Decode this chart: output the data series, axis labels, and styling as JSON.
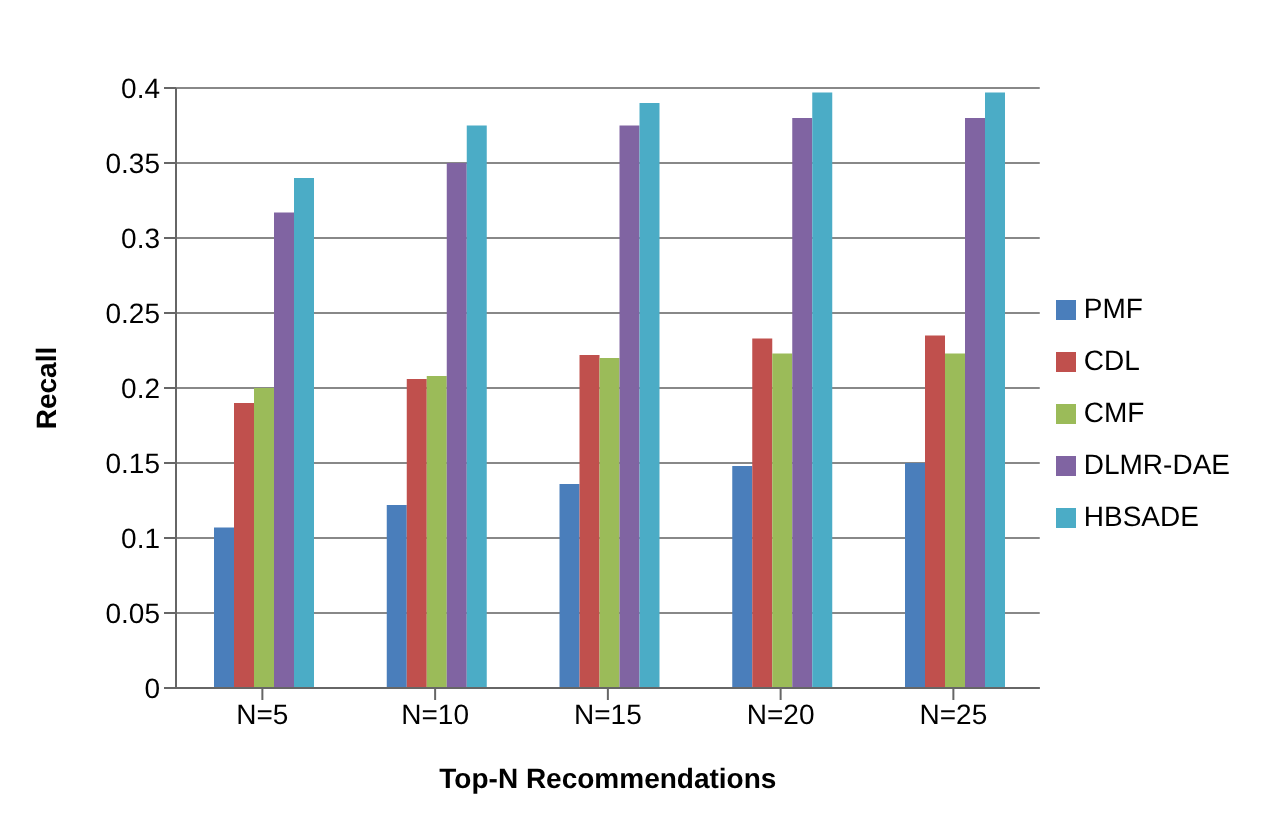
{
  "chart_data": {
    "type": "bar",
    "xlabel": "Top-N Recommendations",
    "ylabel": "Recall",
    "categories": [
      "N=5",
      "N=10",
      "N=15",
      "N=20",
      "N=25"
    ],
    "series": [
      {
        "name": "PMF",
        "color": "#4a7ebb",
        "values": [
          0.107,
          0.122,
          0.136,
          0.148,
          0.15
        ]
      },
      {
        "name": "CDL",
        "color": "#c0504d",
        "values": [
          0.19,
          0.206,
          0.222,
          0.233,
          0.235
        ]
      },
      {
        "name": "CMF",
        "color": "#9bbb59",
        "values": [
          0.2,
          0.208,
          0.22,
          0.223,
          0.223
        ]
      },
      {
        "name": "DLMR-DAE",
        "color": "#8064a2",
        "values": [
          0.317,
          0.35,
          0.375,
          0.38,
          0.38
        ]
      },
      {
        "name": "HBSADE",
        "color": "#4bacc6",
        "values": [
          0.34,
          0.375,
          0.39,
          0.397,
          0.397
        ]
      }
    ],
    "ylim": [
      0,
      0.4
    ],
    "yticks": [
      0,
      0.05,
      0.1,
      0.15,
      0.2,
      0.25,
      0.3,
      0.35,
      0.4
    ],
    "grid": "y",
    "legend": "right"
  }
}
